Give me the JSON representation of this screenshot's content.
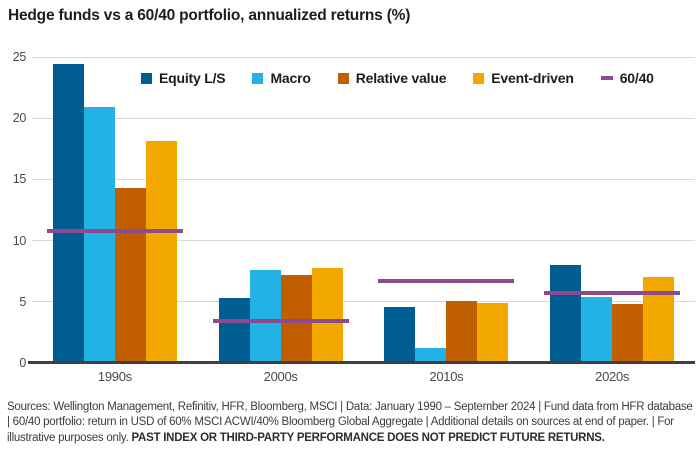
{
  "title": "Hedge funds vs a 60/40 portfolio, annualized returns (%)",
  "chart_data": {
    "type": "bar",
    "categories": [
      "1990s",
      "2000s",
      "2010s",
      "2020s"
    ],
    "series": [
      {
        "name": "Equity L/S",
        "color": "#005d92",
        "values": [
          24.4,
          5.3,
          4.6,
          8.0
        ]
      },
      {
        "name": "Macro",
        "color": "#22b2e5",
        "values": [
          20.9,
          7.6,
          1.2,
          5.4
        ]
      },
      {
        "name": "Relative value",
        "color": "#c05e00",
        "values": [
          14.3,
          7.2,
          5.1,
          4.8
        ]
      },
      {
        "name": "Event-driven",
        "color": "#f3a800",
        "values": [
          18.1,
          7.8,
          4.9,
          7.0
        ]
      }
    ],
    "line_series": {
      "name": "60/40",
      "color": "#8e4a8f",
      "marker": "dash",
      "values": [
        10.8,
        3.4,
        6.7,
        5.7
      ]
    },
    "title": "Hedge funds vs a 60/40 portfolio, annualized returns (%)",
    "xlabel": "",
    "ylabel": "",
    "ylim": [
      0,
      25
    ],
    "yticks": [
      0,
      5,
      10,
      15,
      20,
      25
    ],
    "grid": true,
    "legend_position": "top-center"
  },
  "colors": {
    "gridline": "#d9d9d9",
    "axis": "#404040",
    "title_text": "#1d1d1b",
    "tick_label": "#4a4a4a",
    "footer_text": "#3c3c3c"
  },
  "footer": {
    "segments": [
      {
        "text": "Sources: Wellington Management, Refinitiv, HFR, Bloomberg, MSCI  |  Data: January 1990 – September 2024  |  Fund data from HFR database  |  60/40 portfolio: return in USD of 60% MSCI ACWI/40% Bloomberg Global Aggregate  |  Additional details on sources at end of paper.  |  For illustrative purposes only. ",
        "bold": false
      },
      {
        "text": "PAST INDEX OR THIRD-PARTY PERFORMANCE DOES NOT PREDICT FUTURE RETURNS.",
        "bold": true
      }
    ]
  }
}
